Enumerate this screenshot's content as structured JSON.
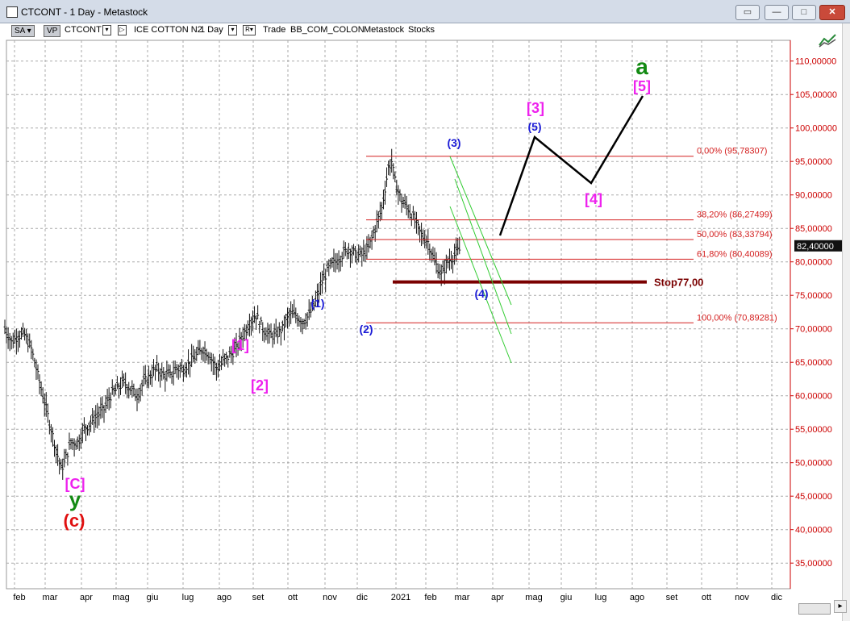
{
  "window": {
    "title": "CTCONT - 1 Day - Metastock"
  },
  "toolbar": {
    "sa": "SA",
    "vp": "VP",
    "symbol": "CTCONT",
    "instrument": "ICE COTTON N2",
    "period": "1 Day",
    "mode": "R",
    "trade": "Trade",
    "source": "BB_COM_COLON",
    "app": "Metastock",
    "category": "Stocks"
  },
  "colors": {
    "magenta": "#ee22ee",
    "blue": "#1b1bd6",
    "green": "#138a13",
    "red": "#e01010",
    "fib": "#d42020",
    "stop": "#7a0000",
    "axis_text": "#cc0000"
  },
  "icons": [
    "app-icon",
    "restore-icon",
    "minimize-icon",
    "maximize-icon",
    "close-icon",
    "chart-tools-icon",
    "scroll-right-icon"
  ],
  "chart_data": {
    "type": "ohlc",
    "price_axis": {
      "ticks": [
        "110,00000",
        "105,00000",
        "100,00000",
        "95,00000",
        "90,00000",
        "85,00000",
        "80,00000",
        "75,00000",
        "70,00000",
        "65,00000",
        "60,00000",
        "55,00000",
        "50,00000",
        "45,00000",
        "40,00000",
        "35,00000"
      ],
      "range": [
        31,
        117
      ],
      "last_price": "82,40000"
    },
    "time_axis": [
      "feb",
      "mar",
      "apr",
      "mag",
      "giu",
      "lug",
      "ago",
      "set",
      "ott",
      "nov",
      "dic",
      "2021",
      "feb",
      "mar",
      "apr",
      "mag",
      "giu",
      "lug",
      "ago",
      "set",
      "ott",
      "nov",
      "dic"
    ],
    "grid": true,
    "price_path": [
      [
        0,
        70
      ],
      [
        2,
        68
      ],
      [
        4,
        69
      ],
      [
        6,
        69
      ],
      [
        8,
        67
      ],
      [
        10,
        63
      ],
      [
        12,
        59
      ],
      [
        14,
        55
      ],
      [
        16,
        51
      ],
      [
        17,
        49
      ],
      [
        18,
        50
      ],
      [
        20,
        53
      ],
      [
        22,
        53
      ],
      [
        24,
        55
      ],
      [
        26,
        56
      ],
      [
        28,
        57
      ],
      [
        30,
        58
      ],
      [
        32,
        60
      ],
      [
        34,
        61
      ],
      [
        36,
        62
      ],
      [
        38,
        61
      ],
      [
        40,
        60
      ],
      [
        42,
        62
      ],
      [
        44,
        63
      ],
      [
        46,
        64
      ],
      [
        48,
        63
      ],
      [
        50,
        63
      ],
      [
        52,
        64
      ],
      [
        54,
        64
      ],
      [
        56,
        65
      ],
      [
        58,
        66
      ],
      [
        60,
        67
      ],
      [
        62,
        66
      ],
      [
        64,
        64
      ],
      [
        66,
        65
      ],
      [
        68,
        66
      ],
      [
        70,
        67
      ],
      [
        72,
        69
      ],
      [
        74,
        71
      ],
      [
        76,
        72
      ],
      [
        78,
        70
      ],
      [
        80,
        69
      ],
      [
        82,
        69
      ],
      [
        84,
        70
      ],
      [
        86,
        72
      ],
      [
        88,
        72
      ],
      [
        90,
        71
      ],
      [
        92,
        72
      ],
      [
        94,
        74
      ],
      [
        96,
        77
      ],
      [
        98,
        79
      ],
      [
        100,
        80
      ],
      [
        102,
        81
      ],
      [
        104,
        82
      ],
      [
        106,
        81
      ],
      [
        108,
        81
      ],
      [
        110,
        82
      ],
      [
        112,
        85
      ],
      [
        114,
        88
      ],
      [
        116,
        94
      ],
      [
        117,
        95
      ],
      [
        118,
        92
      ],
      [
        120,
        89
      ],
      [
        122,
        88
      ],
      [
        124,
        86
      ],
      [
        126,
        84
      ],
      [
        128,
        83
      ],
      [
        130,
        80
      ],
      [
        132,
        78
      ],
      [
        134,
        80
      ],
      [
        136,
        81
      ],
      [
        138,
        82
      ]
    ],
    "fib_levels": [
      {
        "label": "0,00% (95,78307)",
        "value": 95.78307
      },
      {
        "label": "38,20% (86,27499)",
        "value": 86.27499
      },
      {
        "label": "50,00% (83,33794)",
        "value": 83.33794
      },
      {
        "label": "61,80% (80,40089)",
        "value": 80.40089
      },
      {
        "label": "100,00% (70,89281)",
        "value": 70.89281
      }
    ],
    "stop_line": {
      "label": "Stop77,00",
      "value": 77.0
    },
    "projection": [
      [
        138,
        82.5
      ],
      [
        148,
        98.5
      ],
      [
        164,
        92
      ],
      [
        180,
        104.5
      ]
    ],
    "wave_labels": [
      {
        "text": "[C]",
        "color": "magenta"
      },
      {
        "text": "y",
        "color": "green"
      },
      {
        "text": "(c)",
        "color": "red"
      },
      {
        "text": "[1]",
        "color": "magenta"
      },
      {
        "text": "[2]",
        "color": "magenta"
      },
      {
        "text": "(1)",
        "color": "blue"
      },
      {
        "text": "(2)",
        "color": "blue"
      },
      {
        "text": "(3)",
        "color": "blue"
      },
      {
        "text": "(4)",
        "color": "blue"
      },
      {
        "text": "(5)",
        "color": "blue"
      },
      {
        "text": "[3]",
        "color": "magenta"
      },
      {
        "text": "[4]",
        "color": "magenta"
      },
      {
        "text": "[5]",
        "color": "magenta"
      },
      {
        "text": "a",
        "color": "green"
      }
    ]
  }
}
